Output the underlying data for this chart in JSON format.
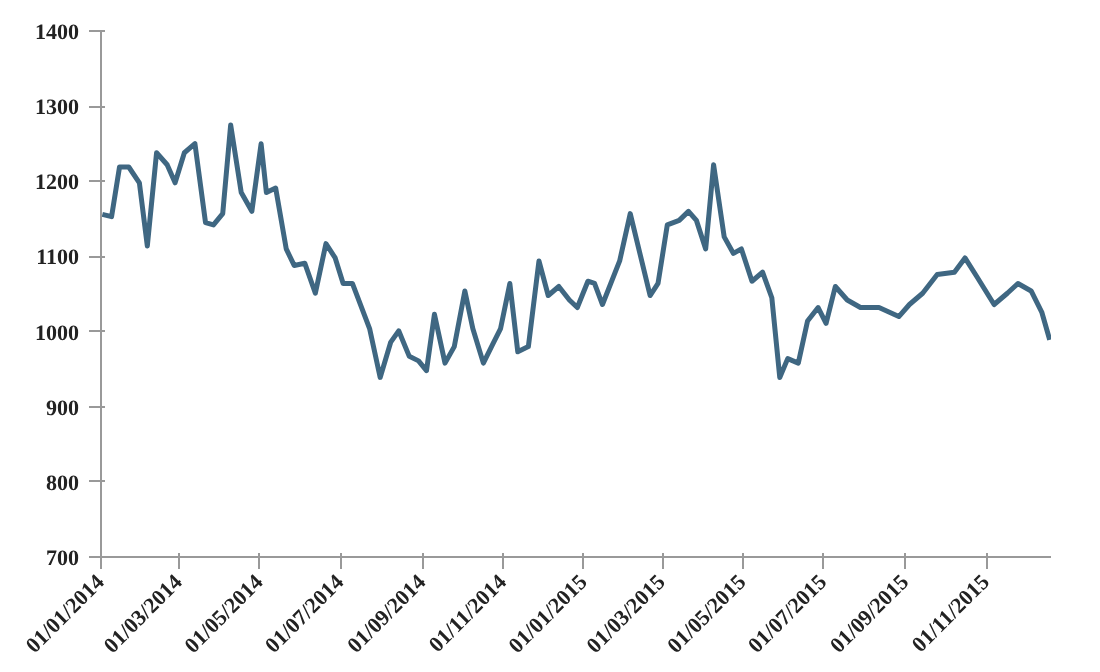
{
  "chart_data": {
    "type": "line",
    "x": [
      "2014-01-02",
      "2014-01-09",
      "2014-01-15",
      "2014-01-22",
      "2014-01-30",
      "2014-02-05",
      "2014-02-12",
      "2014-02-20",
      "2014-02-26",
      "2014-03-05",
      "2014-03-13",
      "2014-03-21",
      "2014-03-27",
      "2014-04-03",
      "2014-04-09",
      "2014-04-17",
      "2014-04-25",
      "2014-05-02",
      "2014-05-06",
      "2014-05-13",
      "2014-05-21",
      "2014-05-27",
      "2014-06-04",
      "2014-06-12",
      "2014-06-20",
      "2014-06-27",
      "2014-07-03",
      "2014-07-10",
      "2014-07-23",
      "2014-07-31",
      "2014-08-08",
      "2014-08-14",
      "2014-08-22",
      "2014-08-29",
      "2014-09-04",
      "2014-09-10",
      "2014-09-18",
      "2014-09-25",
      "2014-10-03",
      "2014-10-09",
      "2014-10-17",
      "2014-10-24",
      "2014-10-30",
      "2014-11-06",
      "2014-11-12",
      "2014-11-20",
      "2014-11-28",
      "2014-12-05",
      "2014-12-13",
      "2014-12-21",
      "2014-12-27",
      "2015-01-04",
      "2015-01-09",
      "2015-01-15",
      "2015-01-28",
      "2015-02-05",
      "2015-02-20",
      "2015-02-26",
      "2015-03-05",
      "2015-03-14",
      "2015-03-21",
      "2015-03-27",
      "2015-04-03",
      "2015-04-09",
      "2015-04-17",
      "2015-04-24",
      "2015-04-30",
      "2015-05-08",
      "2015-05-16",
      "2015-05-23",
      "2015-05-29",
      "2015-06-04",
      "2015-06-12",
      "2015-06-19",
      "2015-06-27",
      "2015-07-03",
      "2015-07-10",
      "2015-07-19",
      "2015-07-29",
      "2015-08-12",
      "2015-08-27",
      "2015-09-04",
      "2015-09-14",
      "2015-09-25",
      "2015-10-08",
      "2015-10-16",
      "2015-10-25",
      "2015-11-07",
      "2015-11-17",
      "2015-11-25",
      "2015-12-05",
      "2015-12-13",
      "2015-12-19"
    ],
    "series": [
      {
        "color": "#3f6782",
        "values": [
          1156,
          1153,
          1219,
          1219,
          1198,
          1114,
          1238,
          1222,
          1198,
          1238,
          1250,
          1145,
          1142,
          1157,
          1275,
          1185,
          1160,
          1250,
          1185,
          1191,
          1110,
          1088,
          1091,
          1051,
          1117,
          1098,
          1064,
          1064,
          1004,
          939,
          986,
          1001,
          967,
          961,
          948,
          1023,
          958,
          980,
          1054,
          1004,
          958,
          983,
          1004,
          1064,
          973,
          980,
          1094,
          1048,
          1060,
          1042,
          1032,
          1067,
          1064,
          1036,
          1094,
          1157,
          1048,
          1064,
          1142,
          1148,
          1160,
          1148,
          1110,
          1222,
          1126,
          1104,
          1110,
          1067,
          1079,
          1045,
          939,
          964,
          958,
          1014,
          1032,
          1011,
          1060,
          1042,
          1032,
          1032,
          1020,
          1036,
          1051,
          1076,
          1079,
          1098,
          1073,
          1036,
          1051,
          1064,
          1054,
          1026,
          989
        ]
      }
    ],
    "xlim": [
      "2014-01-01",
      "2015-12-20"
    ],
    "xticks": [
      {
        "value": "2014-01-01",
        "label": "01/01/2014"
      },
      {
        "value": "2014-03-01",
        "label": "01/03/2014"
      },
      {
        "value": "2014-05-01",
        "label": "01/05/2014"
      },
      {
        "value": "2014-07-01",
        "label": "01/07/2014"
      },
      {
        "value": "2014-09-01",
        "label": "01/09/2014"
      },
      {
        "value": "2014-11-01",
        "label": "01/11/2014"
      },
      {
        "value": "2015-01-01",
        "label": "01/01/2015"
      },
      {
        "value": "2015-03-01",
        "label": "01/03/2015"
      },
      {
        "value": "2015-05-01",
        "label": "01/05/2015"
      },
      {
        "value": "2015-07-01",
        "label": "01/07/2015"
      },
      {
        "value": "2015-09-01",
        "label": "01/09/2015"
      },
      {
        "value": "2015-11-01",
        "label": "01/11/2015"
      }
    ],
    "ylim": [
      700,
      1400
    ],
    "yticks": [
      700,
      800,
      900,
      1000,
      1100,
      1200,
      1300,
      1400
    ],
    "grid": false,
    "marker": "none",
    "line_style": "solid"
  }
}
